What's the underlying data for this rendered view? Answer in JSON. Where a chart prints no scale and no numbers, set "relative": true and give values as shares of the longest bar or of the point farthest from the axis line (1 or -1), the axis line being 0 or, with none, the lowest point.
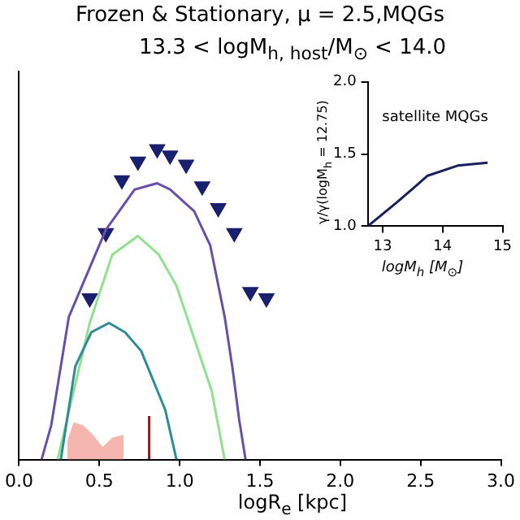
{
  "chart_data": [
    {
      "type": "line",
      "title": "Frozen & Stationary, μ = 2.5,MQGs",
      "subtitle": "13.3 < logM$_{h, host}$/M$_{⊙}$ < 14.0",
      "xlabel": "logR$_{e}$ [kpc]",
      "relative": true,
      "xlim": [
        0,
        3.0
      ],
      "xticks": [
        {
          "value": 0,
          "label": "0.0"
        },
        0.5,
        {
          "value": 1,
          "label": "1.0"
        },
        1.5,
        {
          "value": 2,
          "label": "2.0"
        },
        2.5,
        {
          "value": 3,
          "label": "3.0"
        }
      ],
      "legend": false,
      "grid": false,
      "series": [
        {
          "type": "area",
          "color": "#f4b6ae",
          "x": [
            0.3,
            0.34,
            0.4,
            0.46,
            0.52,
            0.58,
            0.65
          ],
          "values": [
            0.06,
            0.12,
            0.11,
            0.08,
            0.04,
            0.07,
            0.08
          ]
        },
        {
          "type": "line",
          "color": "#2e8b9a",
          "x": [
            0.26,
            0.35,
            0.45,
            0.56,
            0.66,
            0.76,
            0.91,
            0.98
          ],
          "values": [
            0,
            0.3,
            0.41,
            0.44,
            0.41,
            0.35,
            0.16,
            0
          ]
        },
        {
          "type": "line",
          "color": "#90e090",
          "x": [
            0.24,
            0.44,
            0.58,
            0.74,
            0.87,
            0.98,
            1.09,
            1.2,
            1.28
          ],
          "values": [
            0,
            0.44,
            0.66,
            0.72,
            0.66,
            0.56,
            0.39,
            0.22,
            0
          ]
        },
        {
          "type": "line",
          "color": "#6a4fa8",
          "x": [
            0.14,
            0.2,
            0.31,
            0.54,
            0.72,
            0.86,
            0.94,
            1.09,
            1.19,
            1.28,
            1.33,
            1.37,
            1.41
          ],
          "values": [
            0,
            0.11,
            0.46,
            0.74,
            0.87,
            0.89,
            0.87,
            0.8,
            0.69,
            0.46,
            0.29,
            0.13,
            0
          ]
        },
        {
          "type": "line",
          "color": "#8b1a1a",
          "x": [
            0.81,
            0.81
          ],
          "values": [
            0,
            0.14
          ]
        },
        {
          "type": "scatter",
          "marker": "triangle",
          "color": "#1a1f6e",
          "x": [
            0.44,
            0.54,
            0.64,
            0.74,
            0.86,
            0.94,
            1.04,
            1.14,
            1.24,
            1.34,
            1.44,
            1.54
          ],
          "values": [
            0.52,
            0.73,
            0.9,
            0.96,
            1.0,
            0.98,
            0.95,
            0.88,
            0.81,
            0.73,
            0.54,
            0.52
          ]
        }
      ]
    },
    {
      "type": "line",
      "xlabel": "logM$_{h}$ [M$_{⊙}$]",
      "ylabel": "γ/γ(logM$_{h}$ = 12.75)",
      "annotations": [
        "satellite MQGs"
      ],
      "xlim": [
        12.75,
        15
      ],
      "xticks": [
        13,
        14,
        15
      ],
      "ylim": [
        1.0,
        2.0
      ],
      "yticks": [
        {
          "value": 1,
          "label": "1.0"
        },
        1.5,
        {
          "value": 2,
          "label": "2.0"
        }
      ],
      "legend": false,
      "grid": false,
      "series": [
        {
          "color": "#1a1f5e",
          "x": [
            12.75,
            13.25,
            13.75,
            14.25,
            14.75
          ],
          "values": [
            1.0,
            1.17,
            1.35,
            1.42,
            1.44
          ]
        }
      ]
    }
  ]
}
